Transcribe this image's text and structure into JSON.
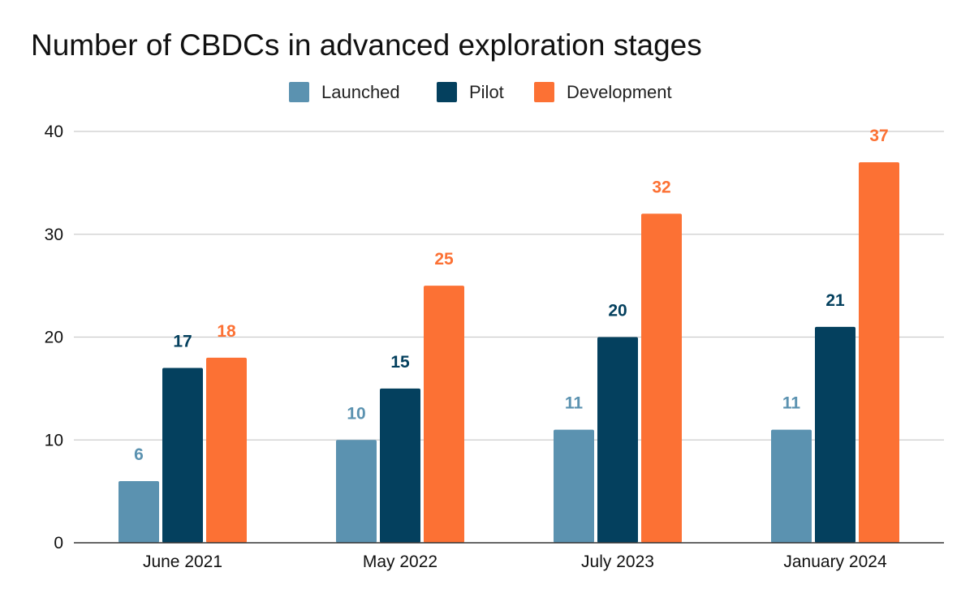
{
  "chart_data": {
    "type": "bar",
    "title": "Number of CBDCs in advanced exploration stages",
    "xlabel": "",
    "ylabel": "",
    "ylim": [
      0,
      40
    ],
    "yticks": [
      0,
      10,
      20,
      30,
      40
    ],
    "grid": true,
    "legend_position": "top-center",
    "categories": [
      "June 2021",
      "May 2022",
      "July 2023",
      "January 2024"
    ],
    "series": [
      {
        "name": "Launched",
        "color": "#5b92b0",
        "values": [
          6,
          10,
          11,
          11
        ]
      },
      {
        "name": "Pilot",
        "color": "#04405e",
        "values": [
          17,
          15,
          20,
          21
        ]
      },
      {
        "name": "Development",
        "color": "#fc7134",
        "values": [
          18,
          25,
          32,
          37
        ]
      }
    ]
  }
}
